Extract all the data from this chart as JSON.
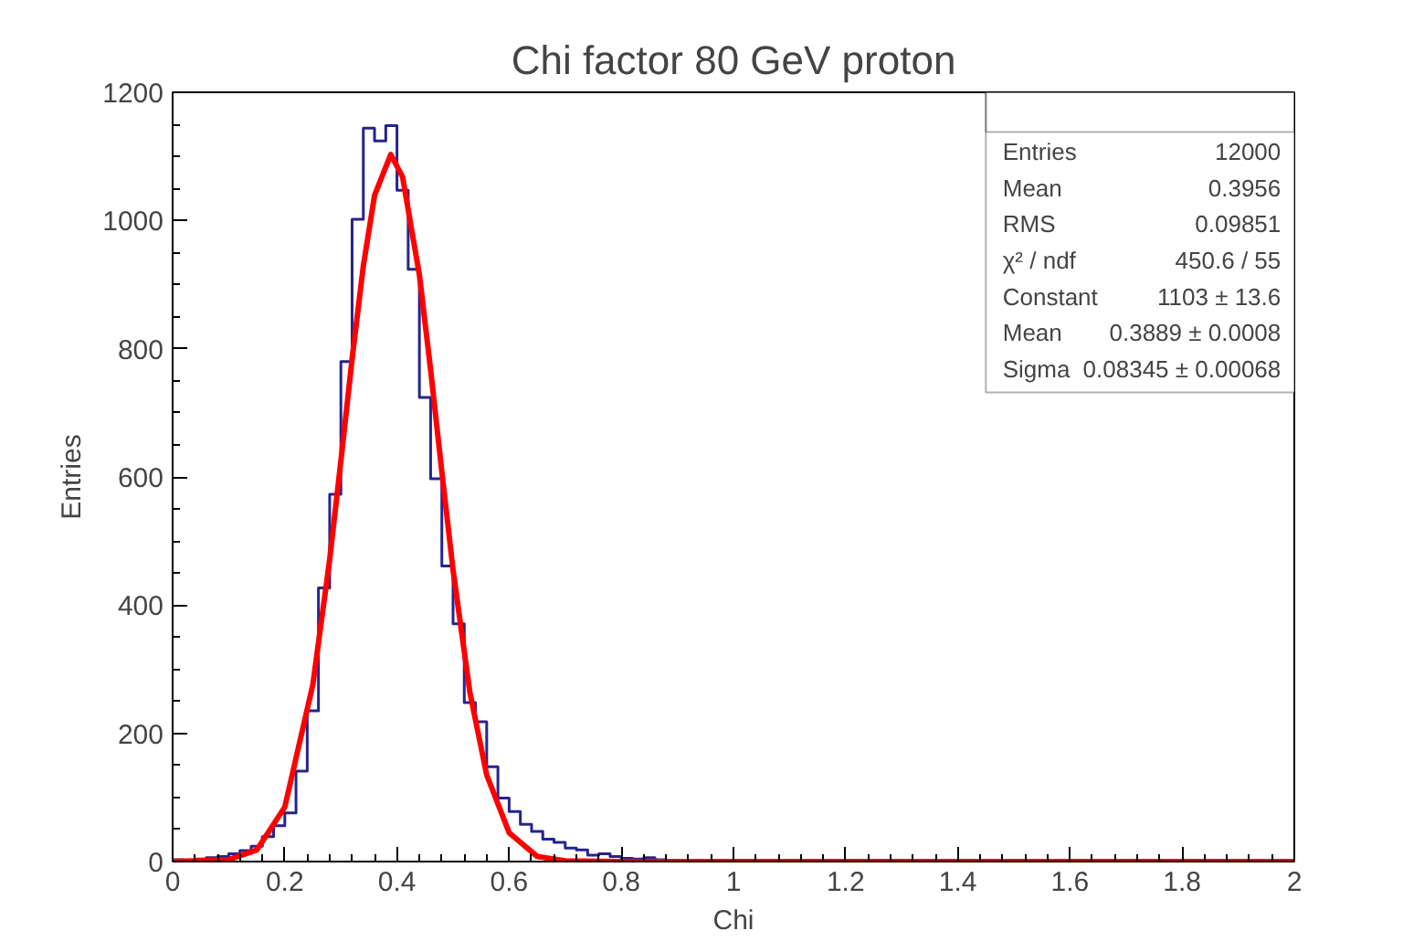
{
  "chart_data": {
    "type": "histogram",
    "title": "Chi factor 80 GeV proton",
    "xlabel": "Chi",
    "ylabel": "Entries",
    "bins": [
      0,
      0.02,
      0.04,
      0.06,
      0.08,
      0.1,
      0.12,
      0.14,
      0.16,
      0.18,
      0.2,
      0.22,
      0.24,
      0.26,
      0.28,
      0.3,
      0.32,
      0.34,
      0.36,
      0.38,
      0.4,
      0.42,
      0.44,
      0.46,
      0.48,
      0.5,
      0.52,
      0.54,
      0.56,
      0.58,
      0.6,
      0.62,
      0.64,
      0.66,
      0.68,
      0.7,
      0.72,
      0.74,
      0.76,
      0.78,
      0.8,
      0.82,
      0.84,
      0.86,
      0.88,
      0.9,
      0.92,
      0.94,
      0.96,
      0.98,
      1,
      1.02,
      1.04,
      1.06,
      1.08,
      1.1,
      1.12,
      1.14,
      1.16,
      1.18,
      1.2,
      1.22,
      1.24,
      1.26,
      1.28,
      1.3,
      1.32,
      1.34,
      1.36,
      1.38,
      1.4,
      1.42,
      1.44,
      1.46,
      1.48,
      1.5,
      1.52,
      1.54,
      1.56,
      1.58,
      1.6,
      1.62,
      1.64,
      1.66,
      1.68,
      1.7,
      1.72,
      1.74,
      1.76,
      1.78,
      1.8,
      1.82,
      1.84,
      1.86,
      1.88,
      1.9,
      1.92,
      1.94,
      1.96,
      1.98,
      2
    ],
    "series": [
      {
        "color": "#24248f",
        "values": [
          3,
          2,
          4,
          6,
          8,
          12,
          17,
          24,
          39,
          56,
          76,
          141,
          235,
          427,
          573,
          780,
          1002,
          1144,
          1124,
          1148,
          1047,
          924,
          724,
          597,
          461,
          371,
          248,
          218,
          148,
          99,
          78,
          58,
          47,
          35,
          30,
          21,
          18,
          10,
          12,
          8,
          5,
          4,
          6,
          3,
          2,
          1,
          0,
          0,
          0,
          0,
          0,
          0,
          0,
          0,
          0,
          0,
          0,
          0,
          0,
          0,
          0,
          0,
          0,
          0,
          0,
          0,
          0,
          0,
          0,
          0,
          0,
          0,
          0,
          0,
          0,
          0,
          0,
          0,
          0,
          0,
          0,
          0,
          0,
          0,
          0,
          0,
          0,
          0,
          0,
          0,
          0,
          0,
          0,
          0,
          0,
          0,
          0,
          0,
          0,
          0
        ]
      },
      {
        "type": "line",
        "color": "#ff0000",
        "x": [
          0,
          0.1,
          0.15,
          0.2,
          0.25,
          0.28,
          0.3,
          0.32,
          0.34,
          0.36,
          0.3889,
          0.41,
          0.44,
          0.46,
          0.48,
          0.5,
          0.53,
          0.56,
          0.6,
          0.65,
          0.7,
          0.8,
          2
        ],
        "values": [
          0,
          3,
          18,
          85,
          276,
          471,
          625,
          784,
          929,
          1039,
          1103,
          1068,
          915,
          767,
          608,
          455,
          264,
          135,
          45,
          8,
          1,
          0,
          0
        ]
      }
    ],
    "xlim": [
      0,
      2
    ],
    "ylim": [
      0,
      1200
    ],
    "xticks": [
      0,
      0.2,
      0.4,
      0.6,
      0.8,
      1,
      1.2,
      1.4,
      1.6,
      1.8,
      2
    ],
    "yticks": [
      0,
      200,
      400,
      600,
      800,
      1000,
      1200
    ],
    "grid": false,
    "annotations": [
      "Entries",
      "12000",
      "Mean",
      "0.3956",
      "RMS",
      "0.09851",
      "χ² / ndf",
      "450.6 / 55",
      "Constant",
      "1103 ± 13.6",
      "Mean",
      "0.3889 ± 0.0008",
      "Sigma",
      "0.08345 ± 0.00068"
    ]
  }
}
